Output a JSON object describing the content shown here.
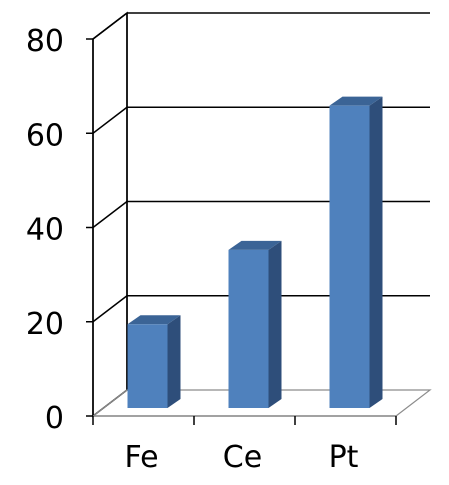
{
  "chart_data": {
    "type": "bar",
    "categories": [
      "Fe",
      "Ce",
      "Pt"
    ],
    "values": [
      18,
      34,
      65
    ],
    "ylim": [
      0,
      80
    ],
    "y_ticks": [
      0,
      20,
      40,
      60,
      80
    ],
    "title": "",
    "xlabel": "",
    "ylabel": "",
    "grid": true,
    "legend": "none",
    "three_d": true,
    "colors": {
      "bar_front": "#4F81BD",
      "bar_side": "#2E4E7A",
      "bar_top": "#3B6496",
      "gridline": "#000000",
      "background": "#ffffff"
    }
  }
}
